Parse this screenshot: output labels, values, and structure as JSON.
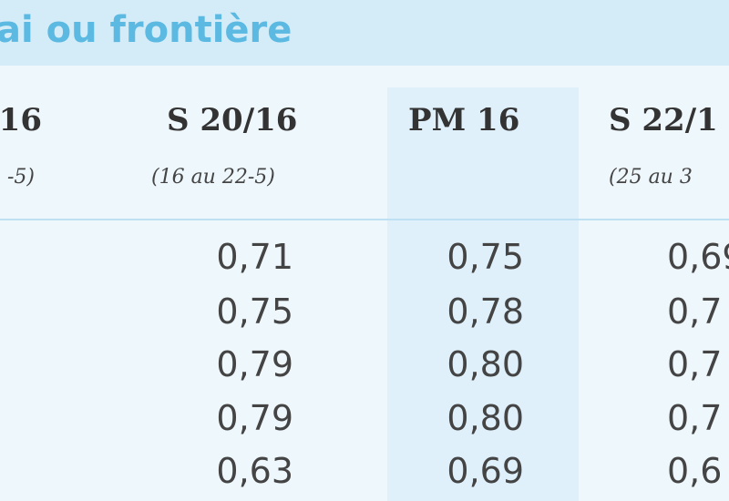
{
  "header": {
    "title": "ai ou frontière"
  },
  "table": {
    "columns": [
      {
        "label": "16",
        "sub": "-5)"
      },
      {
        "label": "S 20/16",
        "sub": "(16 au 22-5)"
      },
      {
        "label": "PM 16"
      },
      {
        "label": "S 22/1",
        "sub": "(25 au 3"
      }
    ],
    "rows": [
      [
        "0,71",
        "0,75",
        "0,69"
      ],
      [
        "0,75",
        "0,78",
        "0,7"
      ],
      [
        "0,79",
        "0,80",
        "0,7"
      ],
      [
        "0,79",
        "0,80",
        "0,7"
      ],
      [
        "0,63",
        "0,69",
        "0,6"
      ]
    ]
  }
}
